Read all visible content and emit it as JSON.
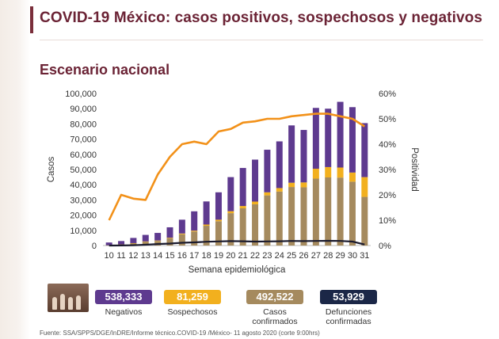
{
  "title": "COVID-19 México: casos positivos, sospechosos y negativos",
  "subtitle": "Escenario nacional",
  "chart_data": {
    "type": "bar",
    "x": [
      10,
      11,
      12,
      13,
      14,
      15,
      16,
      17,
      18,
      19,
      20,
      21,
      22,
      23,
      24,
      25,
      26,
      27,
      28,
      29,
      30,
      31
    ],
    "xlabel": "Semana epidemiológica",
    "ylabel": "Casos",
    "y2label": "Positividad",
    "ylim": [
      0,
      100000
    ],
    "y2lim": [
      0,
      60
    ],
    "yticks": [
      "0",
      "10,000",
      "20,000",
      "30,000",
      "40,000",
      "50,000",
      "60,000",
      "70,000",
      "80,000",
      "90,000",
      "100,000"
    ],
    "y2ticks": [
      "0%",
      "10%",
      "20%",
      "30%",
      "40%",
      "50%",
      "60%"
    ],
    "series": [
      {
        "name": "Casos confirmados",
        "color": "#a58a5e",
        "stack": true,
        "values": [
          200,
          700,
          1500,
          2500,
          3000,
          4700,
          7400,
          9200,
          13000,
          16000,
          21300,
          24500,
          27100,
          33000,
          35500,
          38500,
          38300,
          44000,
          44800,
          44700,
          42000,
          32000
        ]
      },
      {
        "name": "Sospechosos",
        "color": "#f2b01e",
        "stack": true,
        "values": [
          0,
          50,
          100,
          200,
          300,
          400,
          500,
          600,
          800,
          1000,
          1300,
          1500,
          1800,
          2000,
          2300,
          2800,
          3200,
          6500,
          6800,
          6600,
          6000,
          13000
        ]
      },
      {
        "name": "Negativos",
        "color": "#5e3a8f",
        "stack": true,
        "values": [
          1800,
          2200,
          3400,
          4300,
          5000,
          6900,
          9100,
          12700,
          15200,
          18000,
          22400,
          25000,
          27600,
          28000,
          30700,
          37700,
          34500,
          40000,
          38400,
          43200,
          43000,
          35500
        ]
      },
      {
        "name": "Defunciones confirmadas",
        "color": "#1b1b2e",
        "type": "line",
        "axis": "left",
        "values": [
          20,
          60,
          200,
          500,
          1000,
          1300,
          1800,
          2100,
          2500,
          2700,
          2900,
          2800,
          2600,
          2700,
          2800,
          3000,
          2900,
          3000,
          3100,
          3000,
          2600,
          700
        ]
      },
      {
        "name": "Positividad",
        "color": "#f29119",
        "type": "line",
        "axis": "right",
        "values": [
          10,
          20,
          18.5,
          18,
          28,
          35,
          40,
          41,
          40,
          45,
          46,
          48.5,
          49,
          50,
          50,
          51,
          51.5,
          52,
          52,
          51,
          50,
          47
        ]
      }
    ]
  },
  "stats": [
    {
      "value": "538,333",
      "label": "Negativos",
      "color": "#5e3a8f"
    },
    {
      "value": "81,259",
      "label": "Sospechosos",
      "color": "#f2b01e"
    },
    {
      "value": "492,522",
      "label": "Casos confirmados",
      "color": "#a58a5e"
    },
    {
      "value": "53,929",
      "label": "Defunciones confirmadas",
      "color": "#1b2747"
    }
  ],
  "source": "Fuente: SSA/SPPS/DGE/InDRE/Informe técnico.COVID-19 /México- 11 agosto 2020 (corte 9:00hrs)"
}
